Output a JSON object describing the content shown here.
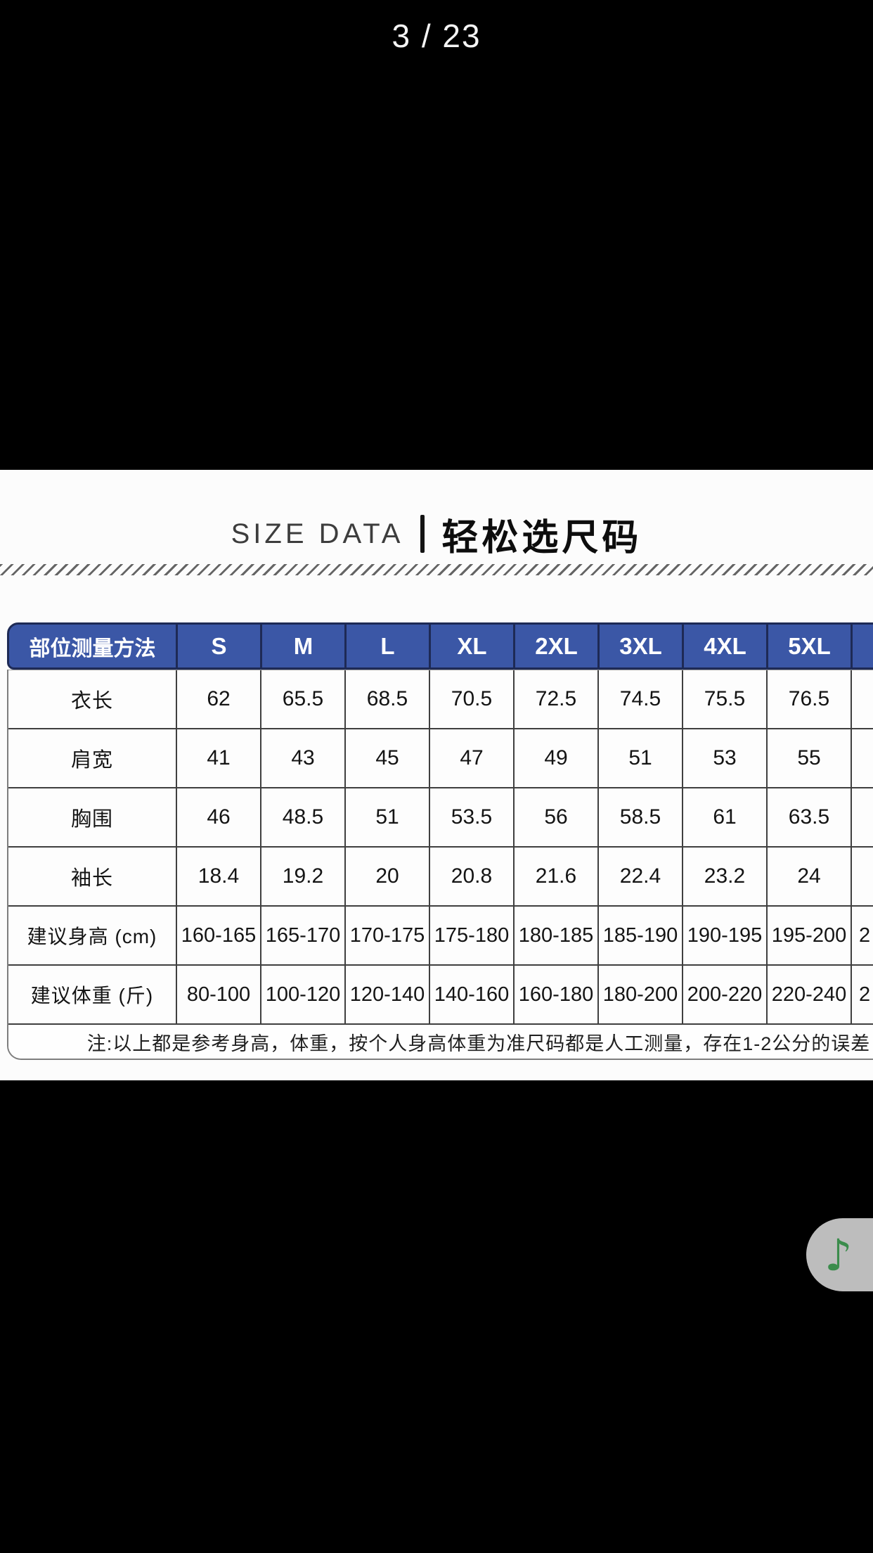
{
  "page_indicator": "3 / 23",
  "section_title": {
    "en": "SIZE DATA",
    "zh": "轻松选尺码"
  },
  "size_table": {
    "corner_header": "部位测量方法",
    "size_headers": [
      "S",
      "M",
      "L",
      "XL",
      "2XL",
      "3XL",
      "4XL",
      "5XL",
      ""
    ],
    "rows": [
      {
        "label": "衣长",
        "values": [
          "62",
          "65.5",
          "68.5",
          "70.5",
          "72.5",
          "74.5",
          "75.5",
          "76.5",
          ""
        ]
      },
      {
        "label": "肩宽",
        "values": [
          "41",
          "43",
          "45",
          "47",
          "49",
          "51",
          "53",
          "55",
          ""
        ]
      },
      {
        "label": "胸围",
        "values": [
          "46",
          "48.5",
          "51",
          "53.5",
          "56",
          "58.5",
          "61",
          "63.5",
          ""
        ]
      },
      {
        "label": "袖长",
        "values": [
          "18.4",
          "19.2",
          "20",
          "20.8",
          "21.6",
          "22.4",
          "23.2",
          "24",
          ""
        ]
      },
      {
        "label": "建议身高 (cm)",
        "values": [
          "160-165",
          "165-170",
          "170-175",
          "175-180",
          "180-185",
          "185-190",
          "190-195",
          "195-200",
          "2"
        ]
      },
      {
        "label": "建议体重 (斤)",
        "values": [
          "80-100",
          "100-120",
          "120-140",
          "140-160",
          "160-180",
          "180-200",
          "200-220",
          "220-240",
          "2"
        ]
      }
    ],
    "note": "注:以上都是参考身高，体重，按个人身高体重为准尺码都是人工测量，存在1-2公分的误差"
  },
  "music_button": {
    "glyph": "♪"
  },
  "colors": {
    "header_blue": "#3b57a6",
    "header_border_navy": "#1e2a55",
    "grid_line": "#3f3f3f",
    "music_green": "#3b8c4c",
    "panel_background": "#fcfcfc",
    "backdrop": "#000000"
  }
}
